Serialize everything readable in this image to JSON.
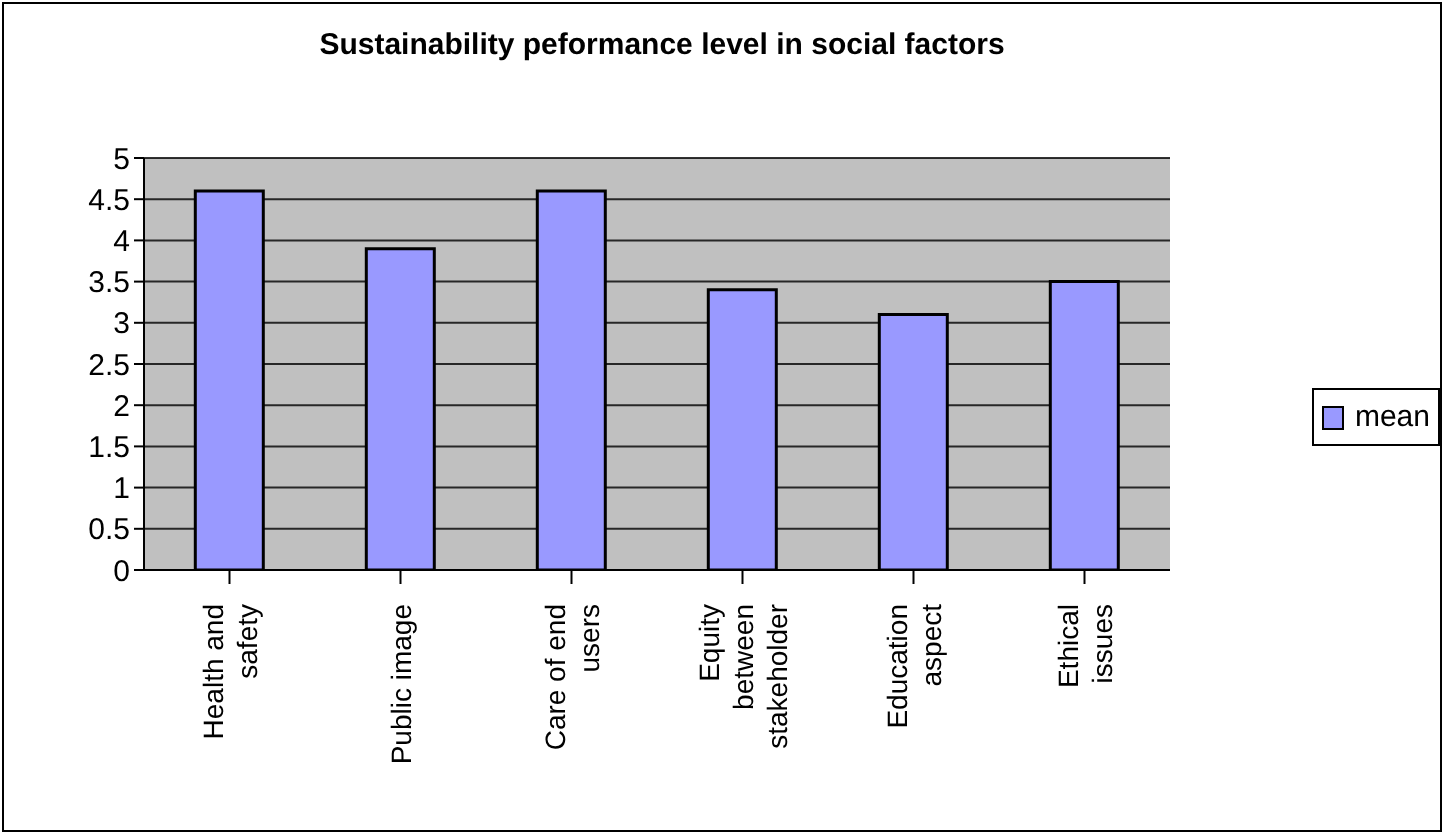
{
  "chart_data": {
    "type": "bar",
    "title": "Sustainability peformance level in social factors",
    "categories": [
      "Health and safety",
      "Public image",
      "Care of end users",
      "Equity between stakeholder",
      "Education aspect",
      "Ethical issues"
    ],
    "series": [
      {
        "name": "mean",
        "color": "#9999ff",
        "values": [
          4.6,
          3.9,
          4.6,
          3.4,
          3.1,
          3.5
        ]
      }
    ],
    "ylim": [
      0,
      5
    ],
    "yticks": [
      0,
      0.5,
      1,
      1.5,
      2,
      2.5,
      3,
      3.5,
      4,
      4.5,
      5
    ],
    "grid": "y",
    "legend": "right"
  }
}
